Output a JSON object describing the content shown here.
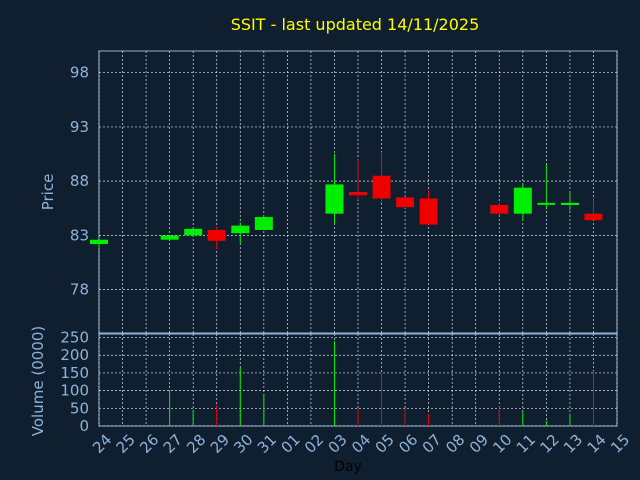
{
  "chart_data": {
    "type": "candlestick",
    "title": "SSIT - last updated 14/11/2025",
    "xlabel": "Day",
    "price_ylabel": "Price",
    "volume_ylabel": "Volume (0000)",
    "colors": {
      "up": "#00ee00",
      "down": "#ee0000",
      "background": "#0f1f30",
      "text": "#8fb3d9",
      "title": "#ffff00"
    },
    "grid": true,
    "price_ylim": [
      74,
      100
    ],
    "price_ticks": [
      78,
      83,
      88,
      93,
      98
    ],
    "volume_ylim": [
      0,
      260
    ],
    "volume_ticks": [
      0,
      50,
      100,
      150,
      200,
      250
    ],
    "x_ticks": [
      "24",
      "25",
      "26",
      "27",
      "28",
      "29",
      "30",
      "31",
      "01",
      "02",
      "03",
      "04",
      "05",
      "06",
      "07",
      "08",
      "09",
      "10",
      "11",
      "12",
      "13",
      "14",
      "15"
    ],
    "candles": [
      {
        "day": "24",
        "open": 82.2,
        "high": 82.6,
        "low": 81.8,
        "close": 82.6,
        "volume": 0
      },
      {
        "day": "27",
        "open": 82.6,
        "high": 83.0,
        "low": 82.5,
        "close": 83.0,
        "volume": 100
      },
      {
        "day": "28",
        "open": 83.0,
        "high": 83.6,
        "low": 82.9,
        "close": 83.6,
        "volume": 45
      },
      {
        "day": "29",
        "open": 83.5,
        "high": 83.8,
        "low": 81.7,
        "close": 82.5,
        "volume": 60
      },
      {
        "day": "30",
        "open": 83.2,
        "high": 84.2,
        "low": 82.3,
        "close": 83.9,
        "volume": 165
      },
      {
        "day": "31",
        "open": 83.5,
        "high": 84.7,
        "low": 83.5,
        "close": 84.7,
        "volume": 90
      },
      {
        "day": "03",
        "open": 85.0,
        "high": 90.5,
        "low": 84.1,
        "close": 87.7,
        "volume": 240
      },
      {
        "day": "04",
        "open": 87.0,
        "high": 90.0,
        "low": 86.3,
        "close": 86.7,
        "volume": 50
      },
      {
        "day": "05",
        "open": 88.5,
        "high": 90.7,
        "low": 86.0,
        "close": 86.4,
        "volume": 150
      },
      {
        "day": "06",
        "open": 86.5,
        "high": 86.5,
        "low": 85.5,
        "close": 85.6,
        "volume": 50
      },
      {
        "day": "07",
        "open": 86.4,
        "high": 87.2,
        "low": 84.0,
        "close": 84.0,
        "volume": 35
      },
      {
        "day": "10",
        "open": 85.8,
        "high": 86.0,
        "low": 84.9,
        "close": 85.0,
        "volume": 55
      },
      {
        "day": "11",
        "open": 85.0,
        "high": 87.8,
        "low": 84.4,
        "close": 87.4,
        "volume": 40
      },
      {
        "day": "12",
        "open": 85.9,
        "high": 89.5,
        "low": 85.4,
        "close": 86.0,
        "volume": 15
      },
      {
        "day": "13",
        "open": 85.8,
        "high": 87.0,
        "low": 85.3,
        "close": 86.0,
        "volume": 35
      },
      {
        "day": "14",
        "open": 85.0,
        "high": 86.5,
        "low": 84.4,
        "close": 84.4,
        "volume": 155
      }
    ]
  }
}
